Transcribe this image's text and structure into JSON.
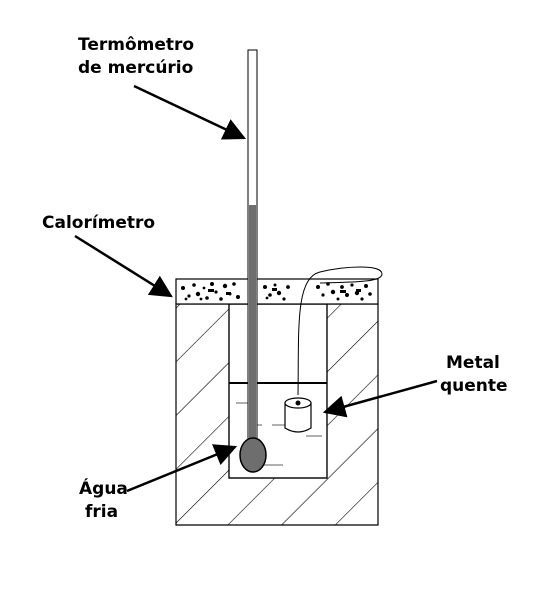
{
  "labels": {
    "thermometer_line1": "Termômetro",
    "thermometer_line2": "de mercúrio",
    "calorimeter": "Calorímetro",
    "metal_line1": "Metal",
    "metal_line2": "quente",
    "water_line1": "Água",
    "water_line2": "fria"
  },
  "colors": {
    "mercury": "#6e6e6e",
    "outline": "#000000",
    "water_marks": "#b0b0b0",
    "background": "#ffffff"
  }
}
